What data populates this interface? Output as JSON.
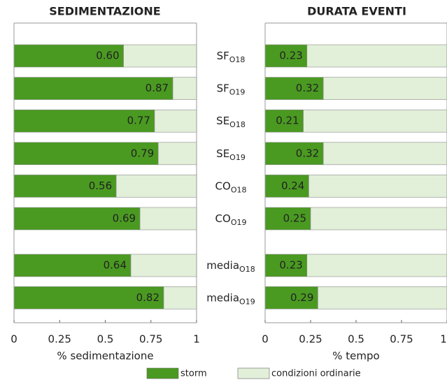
{
  "chart_data": [
    {
      "type": "stacked-barh",
      "title": "SEDIMENTAZIONE",
      "xlabel": "% sedimentazione",
      "categories": [
        "SF",
        "SF",
        "SE",
        "SE",
        "CO",
        "CO",
        "media",
        "media"
      ],
      "category_subscripts": [
        "O18",
        "O19",
        "O18",
        "O19",
        "O18",
        "O19",
        "O18",
        "O19"
      ],
      "series": [
        {
          "name": "storm",
          "color": "#4a9a21",
          "values": [
            0.6,
            0.87,
            0.77,
            0.79,
            0.56,
            0.69,
            0.64,
            0.82
          ],
          "value_labels": [
            "0.60",
            "0.87",
            "0.77",
            "0.79",
            "0.56",
            "0.69",
            "0.64",
            "0.82"
          ]
        },
        {
          "name": "condizioni ordinarie",
          "color": "#e2efd9",
          "values": [
            0.4,
            0.13,
            0.23,
            0.21,
            0.44,
            0.31,
            0.36,
            0.18
          ]
        }
      ],
      "xlim": [
        0,
        1
      ],
      "xticks": [
        0,
        0.25,
        0.5,
        0.75,
        1
      ]
    },
    {
      "type": "stacked-barh",
      "title": "DURATA EVENTI",
      "xlabel": "% tempo",
      "series": [
        {
          "color": "#4a9a21",
          "values": [
            0.23,
            0.32,
            0.21,
            0.32,
            0.24,
            0.25,
            0.23,
            0.29
          ]
        },
        {
          "color": "#e2efd9",
          "values": [
            0.77,
            0.68,
            0.79,
            0.68,
            0.76,
            0.75,
            0.77,
            0.71
          ]
        }
      ],
      "xlim": [
        0,
        1
      ],
      "xticks": [
        0,
        0.25,
        0.5,
        0.75,
        1
      ]
    }
  ]
}
